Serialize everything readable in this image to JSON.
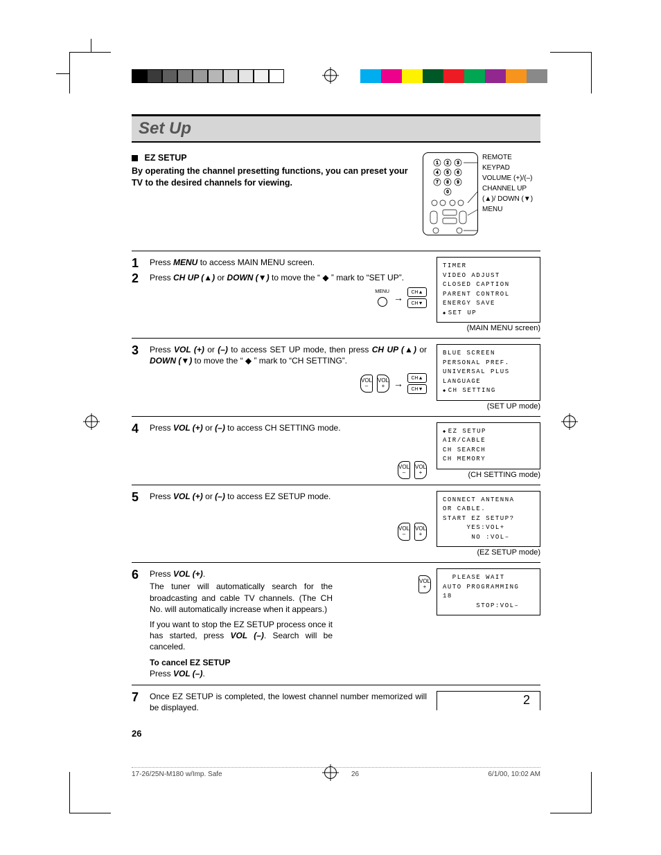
{
  "page": {
    "title": "Set Up",
    "section_title": "EZ SETUP",
    "section_sub": "By operating the channel presetting functions, you can preset your TV to the desired channels for viewing.",
    "page_number": "26",
    "footer_left": "17-26/25N-M180 w/Imp. Safe",
    "footer_center": "26",
    "footer_right": "6/1/00, 10:02 AM"
  },
  "colorbar1": [
    "#000000",
    "#3a3a3a",
    "#5e5e5e",
    "#7d7d7d",
    "#9a9a9a",
    "#b6b6b6",
    "#cfcfcf",
    "#e4e4e4",
    "#f2f2f2",
    "#ffffff"
  ],
  "colorbar2": [
    "#00aeef",
    "#ec008c",
    "#fff200",
    "#005827",
    "#ed1c24",
    "#00a651",
    "#92278f",
    "#f7941d",
    "#898989"
  ],
  "remote_labels": [
    "REMOTE KEYPAD",
    "VOLUME (+)/(–)",
    "CHANNEL UP (▲)/ DOWN (▼)",
    "MENU"
  ],
  "steps": {
    "s1": {
      "num": "1",
      "text_pre": "Press ",
      "text_bold": "MENU",
      "text_post": " to access MAIN MENU screen."
    },
    "s2": {
      "num": "2",
      "parts": [
        "Press ",
        "CH UP (▲)",
        " or ",
        "DOWN (▼)",
        " to move the “ ◆ ” mark to “SET UP”."
      ],
      "screen_lines": [
        "TIMER",
        "VIDEO ADJUST",
        "CLOSED CAPTION",
        "PARENT CONTROL",
        "ENERGY SAVE"
      ],
      "screen_sel": "SET UP",
      "screen_caption": "(MAIN MENU screen)"
    },
    "s3": {
      "num": "3",
      "parts": [
        "Press ",
        "VOL (+)",
        " or ",
        "(–)",
        " to access SET UP mode, then press ",
        "CH UP (▲)",
        " or ",
        "DOWN (▼)",
        " to move the “ ◆ ” mark to “CH SETTING”."
      ],
      "screen_lines": [
        "BLUE SCREEN",
        "PERSONAL PREF.",
        "UNIVERSAL PLUS",
        "LANGUAGE"
      ],
      "screen_sel": "CH SETTING",
      "screen_caption": "(SET UP mode)"
    },
    "s4": {
      "num": "4",
      "parts": [
        "Press ",
        "VOL (+)",
        " or ",
        "(–)",
        " to access CH SETTING mode."
      ],
      "screen_sel": "EZ SETUP",
      "screen_lines": [
        "AIR/CABLE",
        "CH SEARCH",
        "CH MEMORY"
      ],
      "screen_caption": "(CH SETTING mode)"
    },
    "s5": {
      "num": "5",
      "parts": [
        "Press ",
        "VOL (+)",
        " or ",
        "(–)",
        " to access EZ SETUP mode."
      ],
      "screen_lines": [
        "CONNECT ANTENNA",
        "OR CABLE.",
        "",
        "START EZ SETUP?",
        "",
        "     YES:VOL+",
        "      NO :VOL–"
      ],
      "screen_caption": "(EZ SETUP mode)"
    },
    "s6": {
      "num": "6",
      "head": "Press ",
      "head_b": "VOL (+)",
      "head_post": ".",
      "p1": "The tuner will automatically search for the broadcasting and cable TV channels. (The CH No. will automatically increase when it appears.)",
      "p2_pre": "If you want to stop the EZ SETUP process once it has started, press ",
      "p2_b": "VOL (–)",
      "p2_post": ". Search will be canceled.",
      "cancel_h": "To cancel EZ SETUP",
      "cancel_pre": "Press ",
      "cancel_b": "VOL (–)",
      "cancel_post": ".",
      "screen_lines": [
        "  PLEASE WAIT",
        "",
        "AUTO PROGRAMMING",
        "",
        "18",
        "       STOP:VOL–"
      ]
    },
    "s7": {
      "num": "7",
      "text": "Once EZ SETUP is completed, the lowest channel number memorized will be displayed.",
      "ch_display": "2"
    }
  },
  "btn_labels": {
    "menu": "MENU",
    "vol_minus_top": "VOL",
    "vol_minus_bot": "–",
    "vol_plus_top": "VOL",
    "vol_plus_bot": "+",
    "ch_up": "CH▲",
    "ch_down": "CH▼"
  }
}
